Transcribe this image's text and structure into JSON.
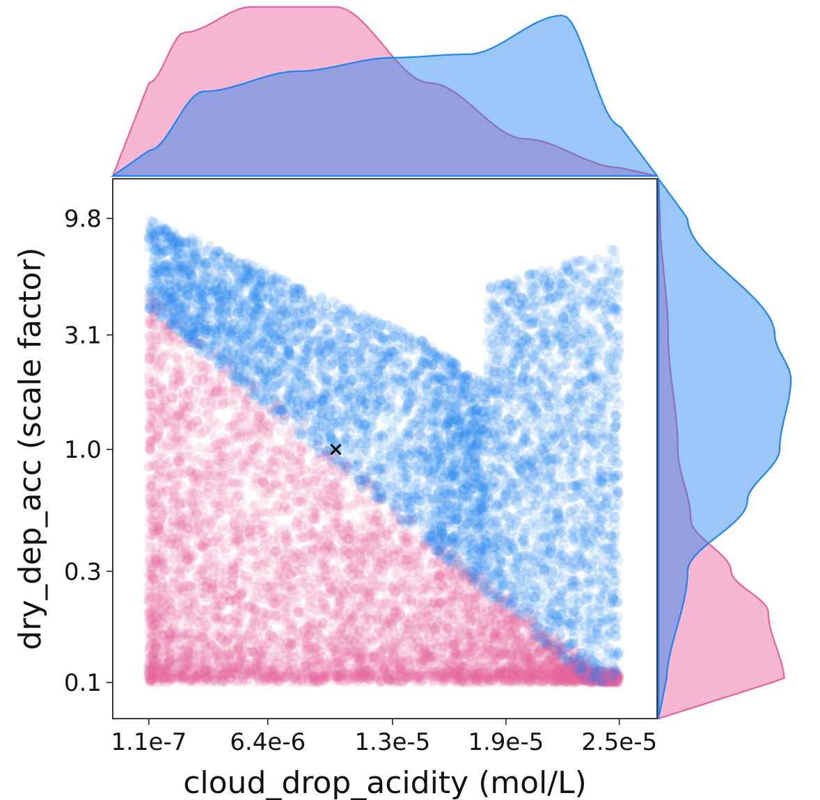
{
  "chart_data": {
    "type": "scatter",
    "xlabel": "cloud_drop_acidity (mol/L)",
    "ylabel": "dry_dep_acc (scale factor)",
    "x_scale": "linear",
    "y_scale": "log",
    "xlim": [
      -1.8e-06,
      2.7e-05
    ],
    "ylim": [
      0.07,
      14.5
    ],
    "x_ticks": [
      1.1e-07,
      6.4e-06,
      1.3e-05,
      1.9e-05,
      2.5e-05
    ],
    "x_tick_labels": [
      "1.1e-7",
      "6.4e-6",
      "1.3e-5",
      "1.9e-5",
      "2.5e-5"
    ],
    "y_ticks": [
      0.1,
      0.3,
      1.0,
      3.1,
      9.8
    ],
    "y_tick_labels": [
      "0.1",
      "0.3",
      "1.0",
      "3.1",
      "9.8"
    ],
    "grid": false,
    "legend": "none",
    "marginals": "kde density curves on top (x) and right (y)",
    "series": [
      {
        "color": "#e8609a",
        "description": "lower-left cluster",
        "x_range": [
          1.1e-07,
          2.5e-05
        ],
        "y_range": [
          0.1,
          5.5
        ],
        "x_density": [
          [
            1.1e-07,
            0.55
          ],
          [
            2e-06,
            0.85
          ],
          [
            5.5e-06,
            1.0
          ],
          [
            1e-05,
            1.0
          ],
          [
            1.5e-05,
            0.55
          ],
          [
            2e-05,
            0.22
          ],
          [
            2.5e-05,
            0.05
          ]
        ],
        "y_density": [
          [
            0.1,
            0.78
          ],
          [
            0.2,
            0.68
          ],
          [
            0.3,
            0.45
          ],
          [
            0.5,
            0.2
          ],
          [
            1.0,
            0.12
          ],
          [
            3.1,
            0.06
          ],
          [
            9.8,
            0.01
          ]
        ]
      },
      {
        "color": "#1e82f0",
        "description": "upper-right cluster",
        "x_range": [
          1.1e-07,
          2.5e-05
        ],
        "y_range": [
          0.1,
          9.8
        ],
        "x_density": [
          [
            1.1e-07,
            0.15
          ],
          [
            3e-06,
            0.5
          ],
          [
            8e-06,
            0.62
          ],
          [
            1.3e-05,
            0.7
          ],
          [
            1.7e-05,
            0.72
          ],
          [
            2.2e-05,
            0.95
          ],
          [
            2.5e-05,
            0.3
          ]
        ],
        "y_density": [
          [
            0.1,
            0.05
          ],
          [
            0.3,
            0.18
          ],
          [
            0.6,
            0.55
          ],
          [
            1.0,
            0.75
          ],
          [
            2.0,
            0.82
          ],
          [
            3.1,
            0.72
          ],
          [
            9.8,
            0.18
          ]
        ]
      }
    ],
    "markers": [
      {
        "symbol": "x",
        "x": 1e-05,
        "y": 1.0,
        "color": "#000000"
      }
    ]
  }
}
